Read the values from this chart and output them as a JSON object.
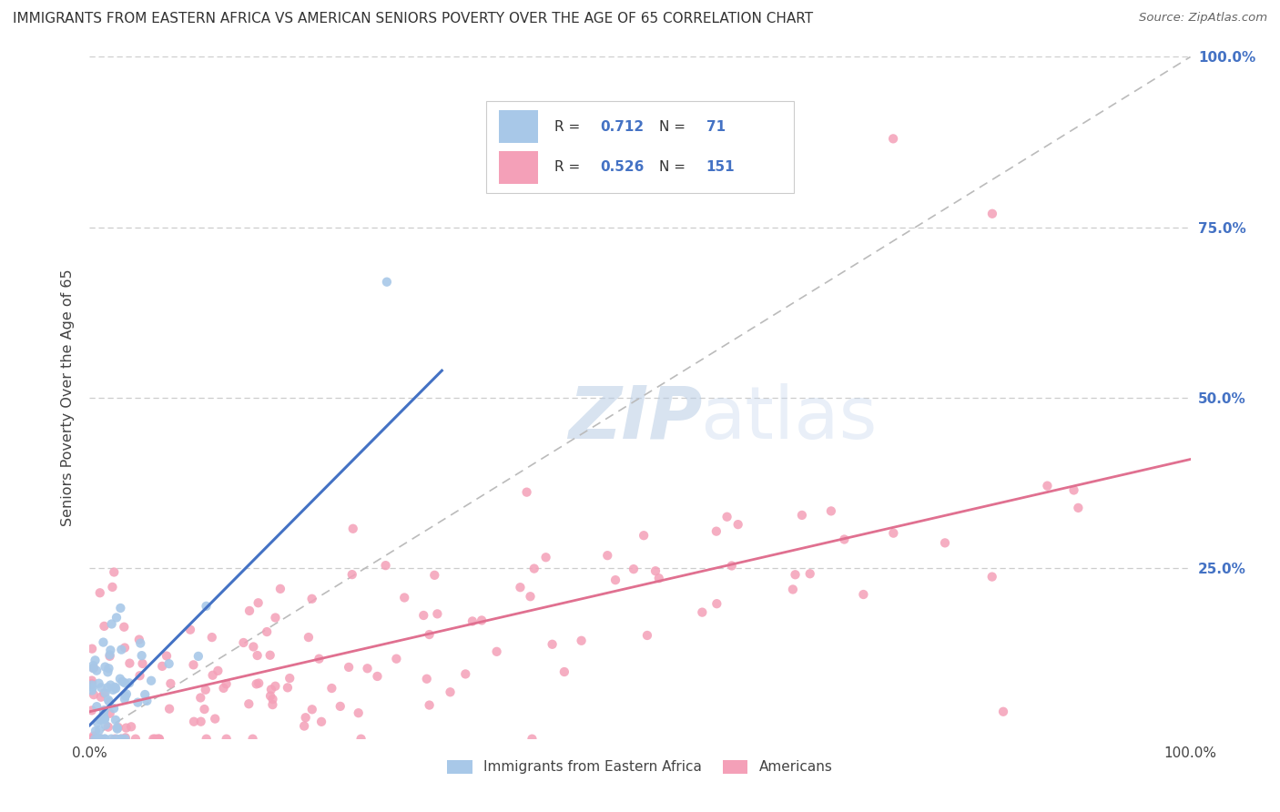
{
  "title": "IMMIGRANTS FROM EASTERN AFRICA VS AMERICAN SENIORS POVERTY OVER THE AGE OF 65 CORRELATION CHART",
  "source": "Source: ZipAtlas.com",
  "ylabel": "Seniors Poverty Over the Age of 65",
  "xlim": [
    0,
    1.0
  ],
  "ylim": [
    0,
    1.0
  ],
  "blue_color": "#a8c8e8",
  "pink_color": "#f4a0b8",
  "blue_line_color": "#4472c4",
  "pink_line_color": "#e07090",
  "diagonal_color": "#bbbbbb",
  "watermark_zip_color": "#c8d8f0",
  "watermark_atlas_color": "#b8c8e8",
  "background_color": "#ffffff",
  "grid_color": "#dddddd",
  "right_tick_color": "#4472c4",
  "ytick_positions": [
    0.25,
    0.5,
    0.75,
    1.0
  ],
  "ytick_labels": [
    "25.0%",
    "50.0%",
    "75.0%",
    "100.0%"
  ],
  "xtick_positions": [
    0.0,
    1.0
  ],
  "xtick_labels": [
    "0.0%",
    "100.0%"
  ],
  "legend_items": [
    {
      "label": "Immigrants from Eastern Africa",
      "color": "#a8c8e8"
    },
    {
      "label": "Americans",
      "color": "#f4a0b8"
    }
  ],
  "R_blue": "0.712",
  "N_blue": "71",
  "R_pink": "0.526",
  "N_pink": "151",
  "blue_line_x": [
    0.0,
    0.32
  ],
  "blue_line_y": [
    0.02,
    0.54
  ],
  "pink_line_x": [
    0.0,
    1.0
  ],
  "pink_line_y": [
    0.04,
    0.41
  ]
}
